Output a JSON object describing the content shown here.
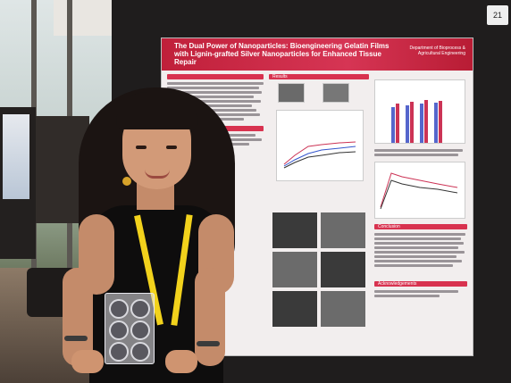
{
  "poster": {
    "title_line1": "The Dual Power of Nanoparticles: Bioengineering Gelatin Films with Lignin-grafted Silver",
    "title_line2": "Nanoparticles for Enhanced Tissue Repair",
    "department": "Department of Bioprocess & Agricultural Engineering",
    "sections": {
      "results": "Results",
      "conclusion": "Conclusion",
      "acknowledgements": "Acknowledgements"
    }
  },
  "board_number": "21",
  "colors": {
    "poster_accent": "#d63554",
    "lanyard": "#f2d21c"
  }
}
